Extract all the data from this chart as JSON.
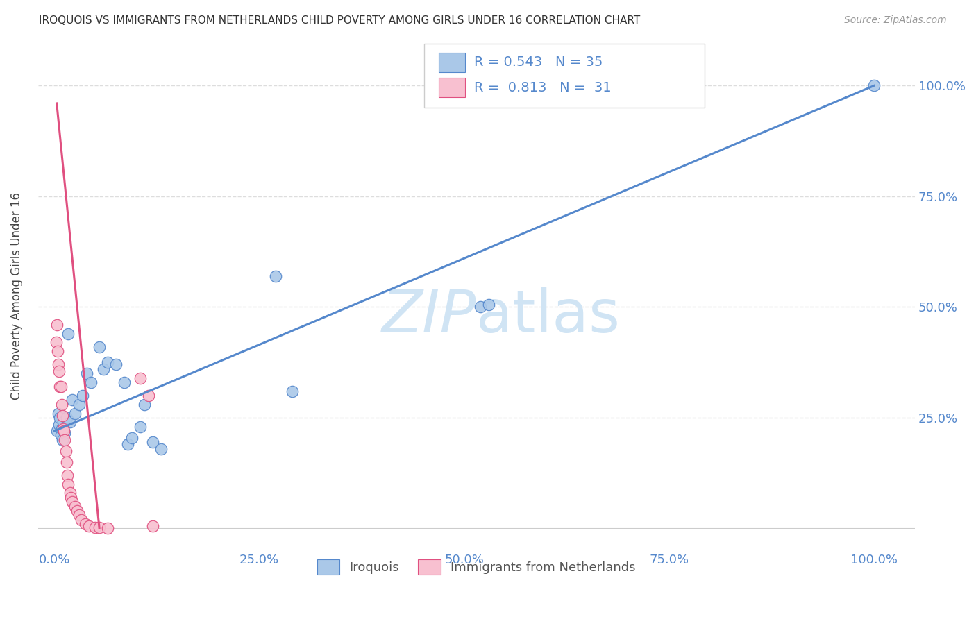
{
  "title": "IROQUOIS VS IMMIGRANTS FROM NETHERLANDS CHILD POVERTY AMONG GIRLS UNDER 16 CORRELATION CHART",
  "source": "Source: ZipAtlas.com",
  "ylabel": "Child Poverty Among Girls Under 16",
  "blue_R": 0.543,
  "blue_N": 35,
  "pink_R": 0.813,
  "pink_N": 31,
  "legend_label_blue": "Iroquois",
  "legend_label_pink": "Immigrants from Netherlands",
  "blue_scatter_x": [
    0.3,
    0.5,
    0.6,
    0.7,
    0.8,
    0.9,
    1.0,
    1.1,
    1.2,
    1.3,
    1.5,
    1.7,
    1.9,
    2.2,
    2.5,
    3.0,
    3.5,
    4.0,
    4.5,
    5.5,
    6.0,
    6.5,
    7.5,
    8.5,
    9.0,
    9.5,
    10.5,
    11.0,
    12.0,
    13.0,
    27.0,
    29.0,
    52.0,
    53.0,
    100.0
  ],
  "blue_scatter_y": [
    22.0,
    26.0,
    23.5,
    25.0,
    21.0,
    22.5,
    20.0,
    24.0,
    22.0,
    21.5,
    25.0,
    44.0,
    24.0,
    29.0,
    26.0,
    28.0,
    30.0,
    35.0,
    33.0,
    41.0,
    36.0,
    37.5,
    37.0,
    33.0,
    19.0,
    20.5,
    23.0,
    28.0,
    19.5,
    18.0,
    57.0,
    31.0,
    50.0,
    50.5,
    100.0
  ],
  "pink_scatter_x": [
    0.2,
    0.3,
    0.4,
    0.5,
    0.6,
    0.7,
    0.8,
    0.9,
    1.0,
    1.1,
    1.2,
    1.3,
    1.4,
    1.5,
    1.6,
    1.7,
    1.9,
    2.0,
    2.2,
    2.5,
    2.8,
    3.0,
    3.3,
    3.8,
    4.2,
    5.0,
    5.5,
    6.5,
    10.5,
    11.5,
    12.0
  ],
  "pink_scatter_y": [
    42.0,
    46.0,
    40.0,
    37.0,
    35.5,
    32.0,
    32.0,
    28.0,
    25.5,
    22.5,
    22.0,
    20.0,
    17.5,
    15.0,
    12.0,
    10.0,
    8.0,
    7.0,
    6.0,
    5.0,
    4.0,
    3.0,
    2.0,
    1.0,
    0.5,
    0.3,
    0.2,
    0.1,
    34.0,
    30.0,
    0.5
  ],
  "blue_line_x": [
    0.0,
    100.0
  ],
  "blue_line_y": [
    22.0,
    100.0
  ],
  "pink_line_x": [
    0.3,
    5.5
  ],
  "pink_line_y": [
    96.0,
    0.0
  ],
  "xlim": [
    -2.0,
    105.0
  ],
  "ylim": [
    -5.0,
    110.0
  ],
  "xticks": [
    0.0,
    25.0,
    50.0,
    75.0,
    100.0
  ],
  "yticks": [
    25.0,
    50.0,
    75.0,
    100.0
  ],
  "xticklabels": [
    "0.0%",
    "25.0%",
    "50.0%",
    "75.0%",
    "100.0%"
  ],
  "yticklabels": [
    "25.0%",
    "50.0%",
    "75.0%",
    "100.0%"
  ],
  "grid_color": "#dddddd",
  "blue_dot_color": "#aac8e8",
  "blue_line_color": "#5588cc",
  "pink_dot_color": "#f8c0d0",
  "pink_line_color": "#e05080",
  "bg_color": "#ffffff",
  "watermark_color": "#d0e4f4",
  "tick_color": "#5588cc",
  "title_color": "#333333",
  "source_color": "#999999",
  "ylabel_color": "#444444"
}
